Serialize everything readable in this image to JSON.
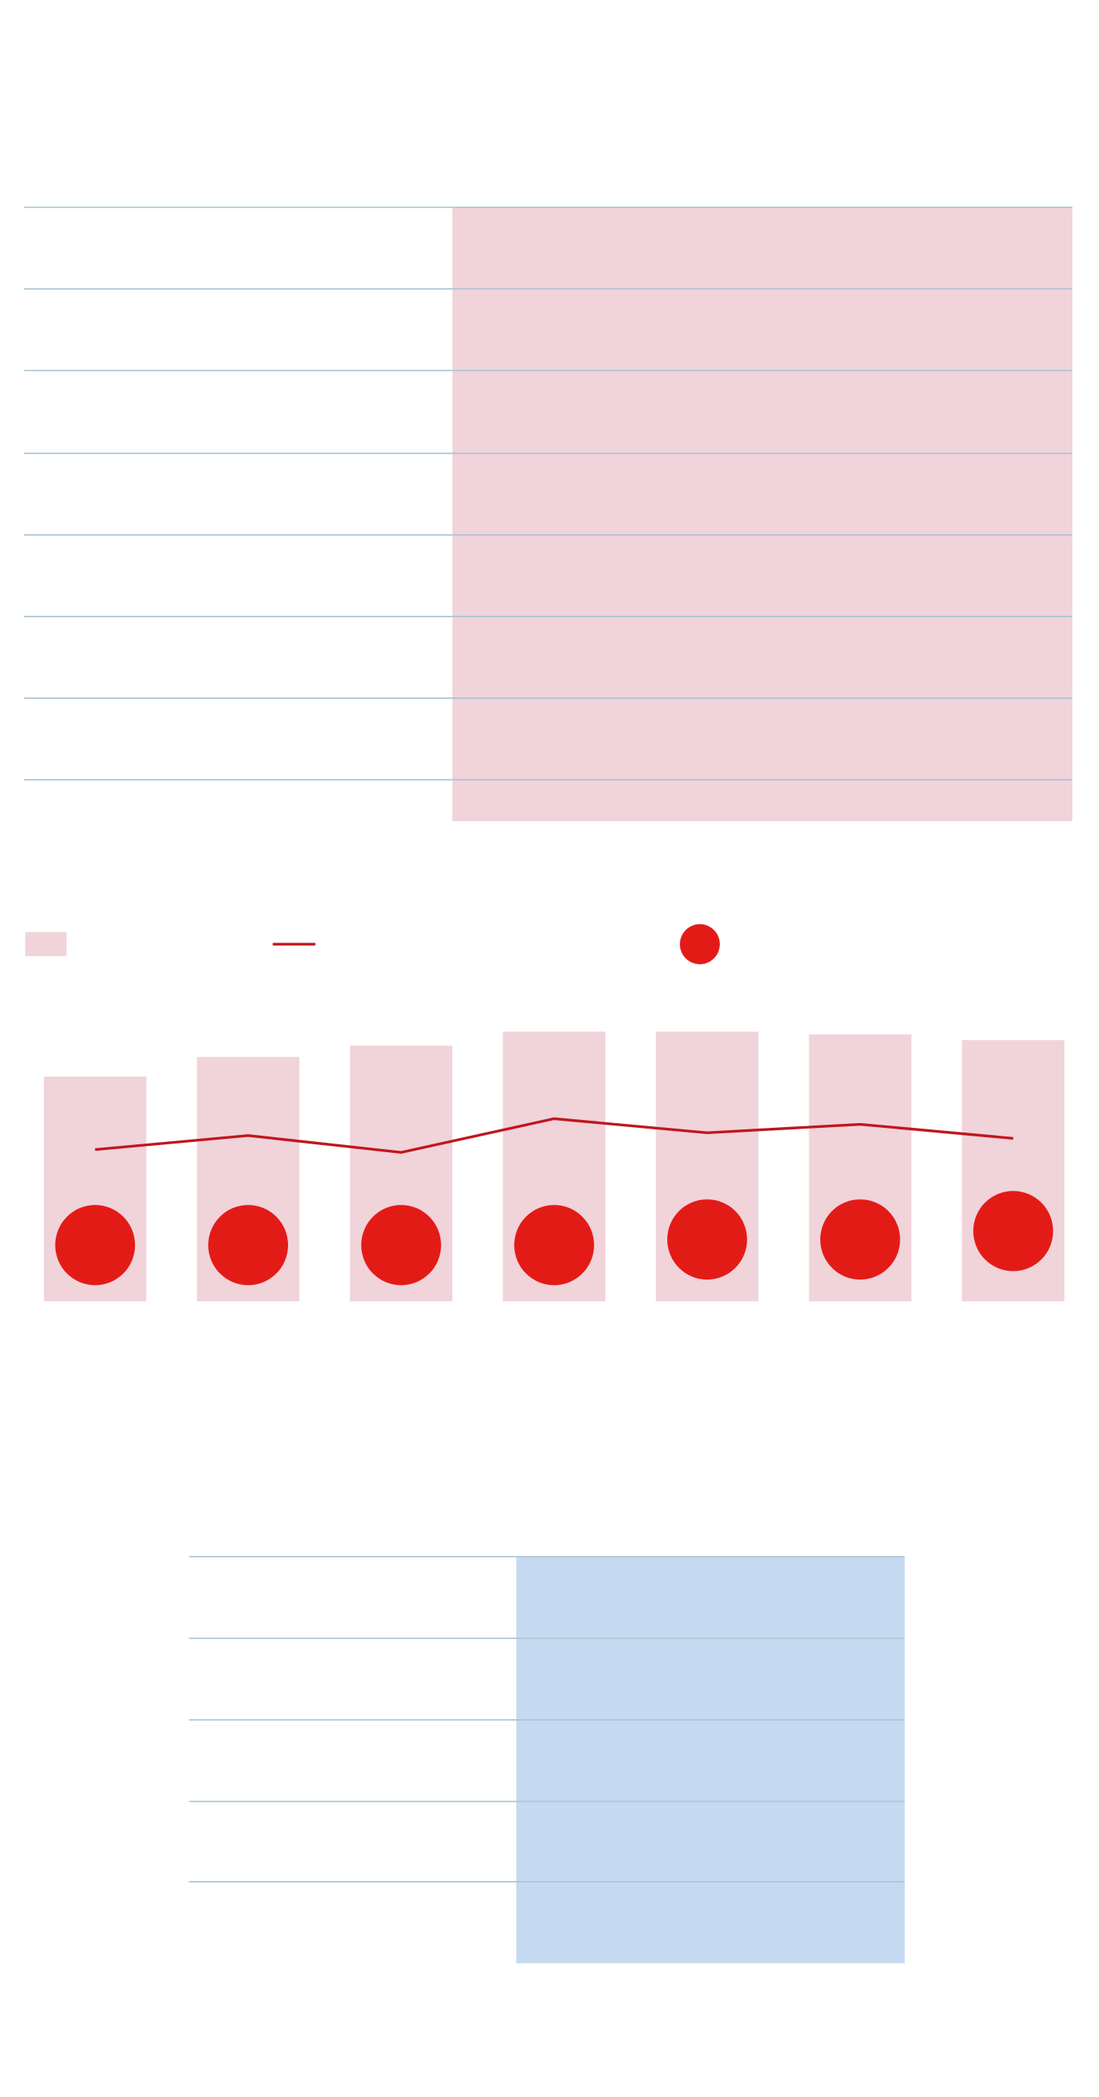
{
  "chart_data": {
    "type": "bar",
    "categories": [
      null,
      null,
      null,
      null,
      null,
      null,
      null
    ],
    "ylim": [
      0,
      100
    ],
    "series": [
      {
        "type": "bar",
        "color": "#f1d3da",
        "values": [
          80,
          87,
          91,
          96,
          96,
          95,
          93
        ]
      },
      {
        "type": "line",
        "color": "#c0171d",
        "values": [
          54,
          59,
          53,
          65,
          60,
          63,
          58
        ]
      },
      {
        "type": "scatter",
        "color": "#e31b17",
        "values": [
          20,
          20,
          20,
          20,
          22,
          22,
          25
        ]
      }
    ]
  }
}
